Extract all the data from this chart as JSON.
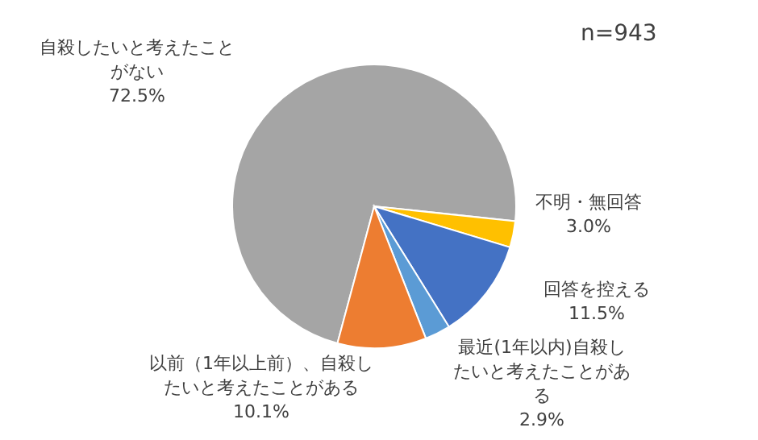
{
  "chart_data": {
    "type": "pie",
    "categories": [
      "自殺したいと考えたことがない",
      "不明・無回答",
      "回答を控える",
      "最近(1年以内)自殺したいと考えたことがある",
      "以前（1年以上前）、自殺したいと考えたことがある"
    ],
    "values": [
      72.5,
      3.0,
      11.5,
      2.9,
      10.1
    ],
    "value_labels": [
      "72.5%",
      "3.0%",
      "11.5%",
      "2.9%",
      "10.1%"
    ],
    "colors": [
      "#a5a5a5",
      "#ffc000",
      "#4472c4",
      "#5b9bd5",
      "#ed7d31"
    ],
    "annotations": [
      "n=943"
    ]
  }
}
